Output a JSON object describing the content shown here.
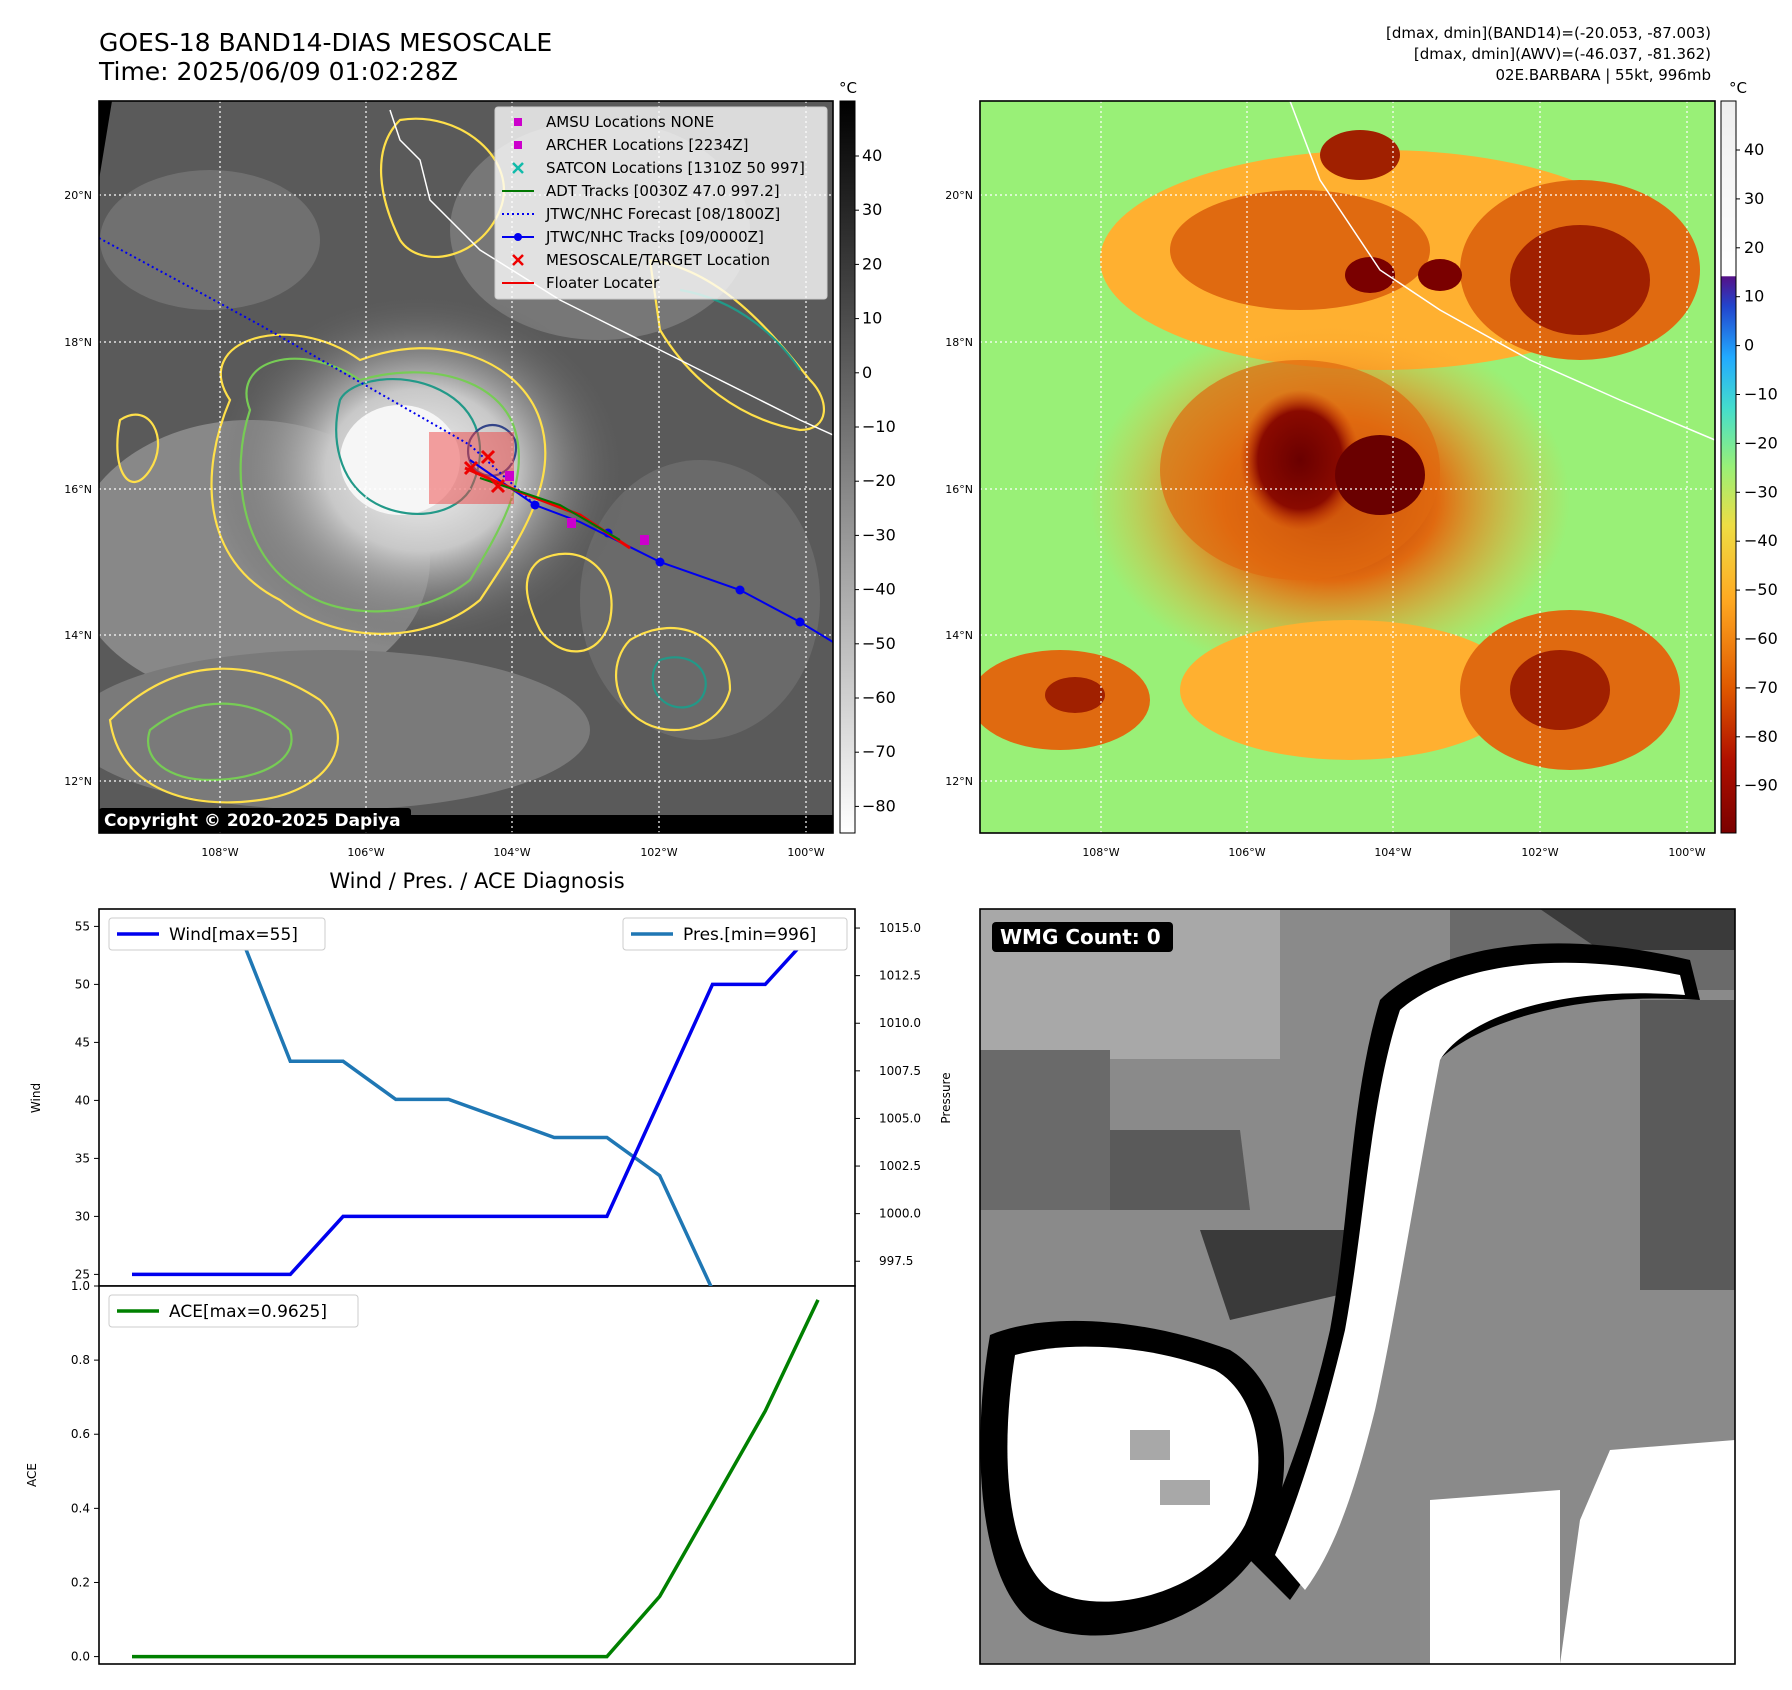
{
  "header": {
    "title_line1": "GOES-18 BAND14-DIAS MESOSCALE",
    "title_line2": "Time: 2025/06/09 01:02:28Z",
    "info_line1": "[dmax, dmin](BAND14)=(-20.053, -87.003)",
    "info_line2": "[dmax, dmin](AWV)=(-46.037, -81.362)",
    "info_line3": "02E.BARBARA | 55kt, 996mb"
  },
  "map_axes": {
    "lat_labels": [
      "20°N",
      "18°N",
      "16°N",
      "14°N",
      "12°N"
    ],
    "lon_labels": [
      "108°W",
      "106°W",
      "104°W",
      "102°W",
      "100°W"
    ]
  },
  "ir_panel": {
    "colorbar_unit": "°C",
    "colorbar_ticks": [
      "40",
      "30",
      "20",
      "10",
      "0",
      "−10",
      "−20",
      "−30",
      "−40",
      "−50",
      "−60",
      "−70",
      "−80"
    ],
    "copyright": "Copyright © 2020-2025 Dapiya",
    "legend": [
      {
        "label": "AMSU Locations NONE",
        "marker": "square",
        "color": "#cc00cc"
      },
      {
        "label": "ARCHER Locations [2234Z]",
        "marker": "square",
        "color": "#cc00cc"
      },
      {
        "label": "SATCON Locations [1310Z 50 997]",
        "marker": "x",
        "color": "#11bbaa"
      },
      {
        "label": "ADT Tracks [0030Z 47.0 997.2]",
        "marker": "line",
        "color": "#007700"
      },
      {
        "label": "JTWC/NHC Forecast [08/1800Z]",
        "marker": "dotted",
        "color": "#0000ee"
      },
      {
        "label": "JTWC/NHC Tracks [09/0000Z]",
        "marker": "line-dot",
        "color": "#0000ee"
      },
      {
        "label": "MESOSCALE/TARGET Location",
        "marker": "x",
        "color": "#ee0000"
      },
      {
        "label": "Floater Locater",
        "marker": "line",
        "color": "#ee0000"
      }
    ]
  },
  "wv_panel": {
    "colorbar_unit": "°C",
    "colorbar_ticks": [
      "40",
      "30",
      "20",
      "10",
      "0",
      "−10",
      "−20",
      "−30",
      "−40",
      "−50",
      "−60",
      "−70",
      "−80",
      "−90"
    ]
  },
  "wmg_panel": {
    "label": "WMG Count: 0"
  },
  "chart_data": [
    {
      "type": "line",
      "title": "Wind / Pres. / ACE Diagnosis",
      "ylabel": "Wind",
      "ylabel_right": "Pressure",
      "ylim": [
        24.0,
        56.5
      ],
      "ylim_right": [
        996.2,
        1016.0
      ],
      "y_ticks": [
        25,
        30,
        35,
        40,
        45,
        50,
        55
      ],
      "y_ticks_right": [
        "997.5",
        "1000.0",
        "1002.5",
        "1005.0",
        "1007.5",
        "1010.0",
        "1012.5",
        "1015.0"
      ],
      "x": [
        0,
        1,
        2,
        3,
        4,
        5,
        6,
        7,
        8,
        9,
        10,
        11,
        12,
        13
      ],
      "series": [
        {
          "name": "Wind[max=55]",
          "color": "#0000ee",
          "axis": "left",
          "values": [
            25,
            25,
            25,
            25,
            30,
            30,
            30,
            30,
            30,
            30,
            40,
            50,
            50,
            55
          ]
        },
        {
          "name": "Pres.[min=996]",
          "color": "#1f77b4",
          "axis": "right",
          "values": [
            1015,
            1015,
            1015,
            1008,
            1008,
            1006,
            1006,
            1005,
            1004,
            1004,
            1002,
            996,
            996,
            996
          ]
        }
      ]
    },
    {
      "type": "line",
      "ylabel": "ACE",
      "ylim": [
        -0.02,
        1.0
      ],
      "y_ticks": [
        "0.0",
        "0.2",
        "0.4",
        "0.6",
        "0.8",
        "1.0"
      ],
      "x": [
        0,
        1,
        2,
        3,
        4,
        5,
        6,
        7,
        8,
        9,
        10,
        11,
        12,
        13
      ],
      "series": [
        {
          "name": "ACE[max=0.9625]",
          "color": "#008000",
          "values": [
            0,
            0,
            0,
            0,
            0,
            0,
            0,
            0,
            0,
            0,
            0.1625,
            0.4125,
            0.6625,
            0.9625
          ]
        }
      ]
    }
  ]
}
